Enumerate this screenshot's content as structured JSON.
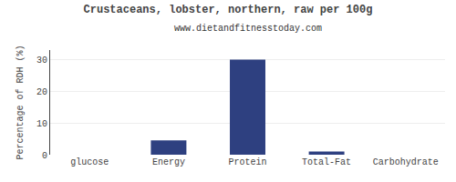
{
  "chart_data": {
    "type": "bar",
    "title": "Crustaceans, lobster, northern, raw per 100g",
    "subtitle": "www.dietandfitnesstoday.com",
    "categories": [
      "glucose",
      "Energy",
      "Protein",
      "Total-Fat",
      "Carbohydrate"
    ],
    "values": [
      0,
      4.5,
      30,
      1.0,
      0
    ],
    "color": "#2e4080",
    "ylabel": "Percentage of RDH (%)",
    "ylim": [
      0,
      33
    ],
    "yticks": [
      0,
      10,
      20,
      30
    ],
    "grid": true
  }
}
